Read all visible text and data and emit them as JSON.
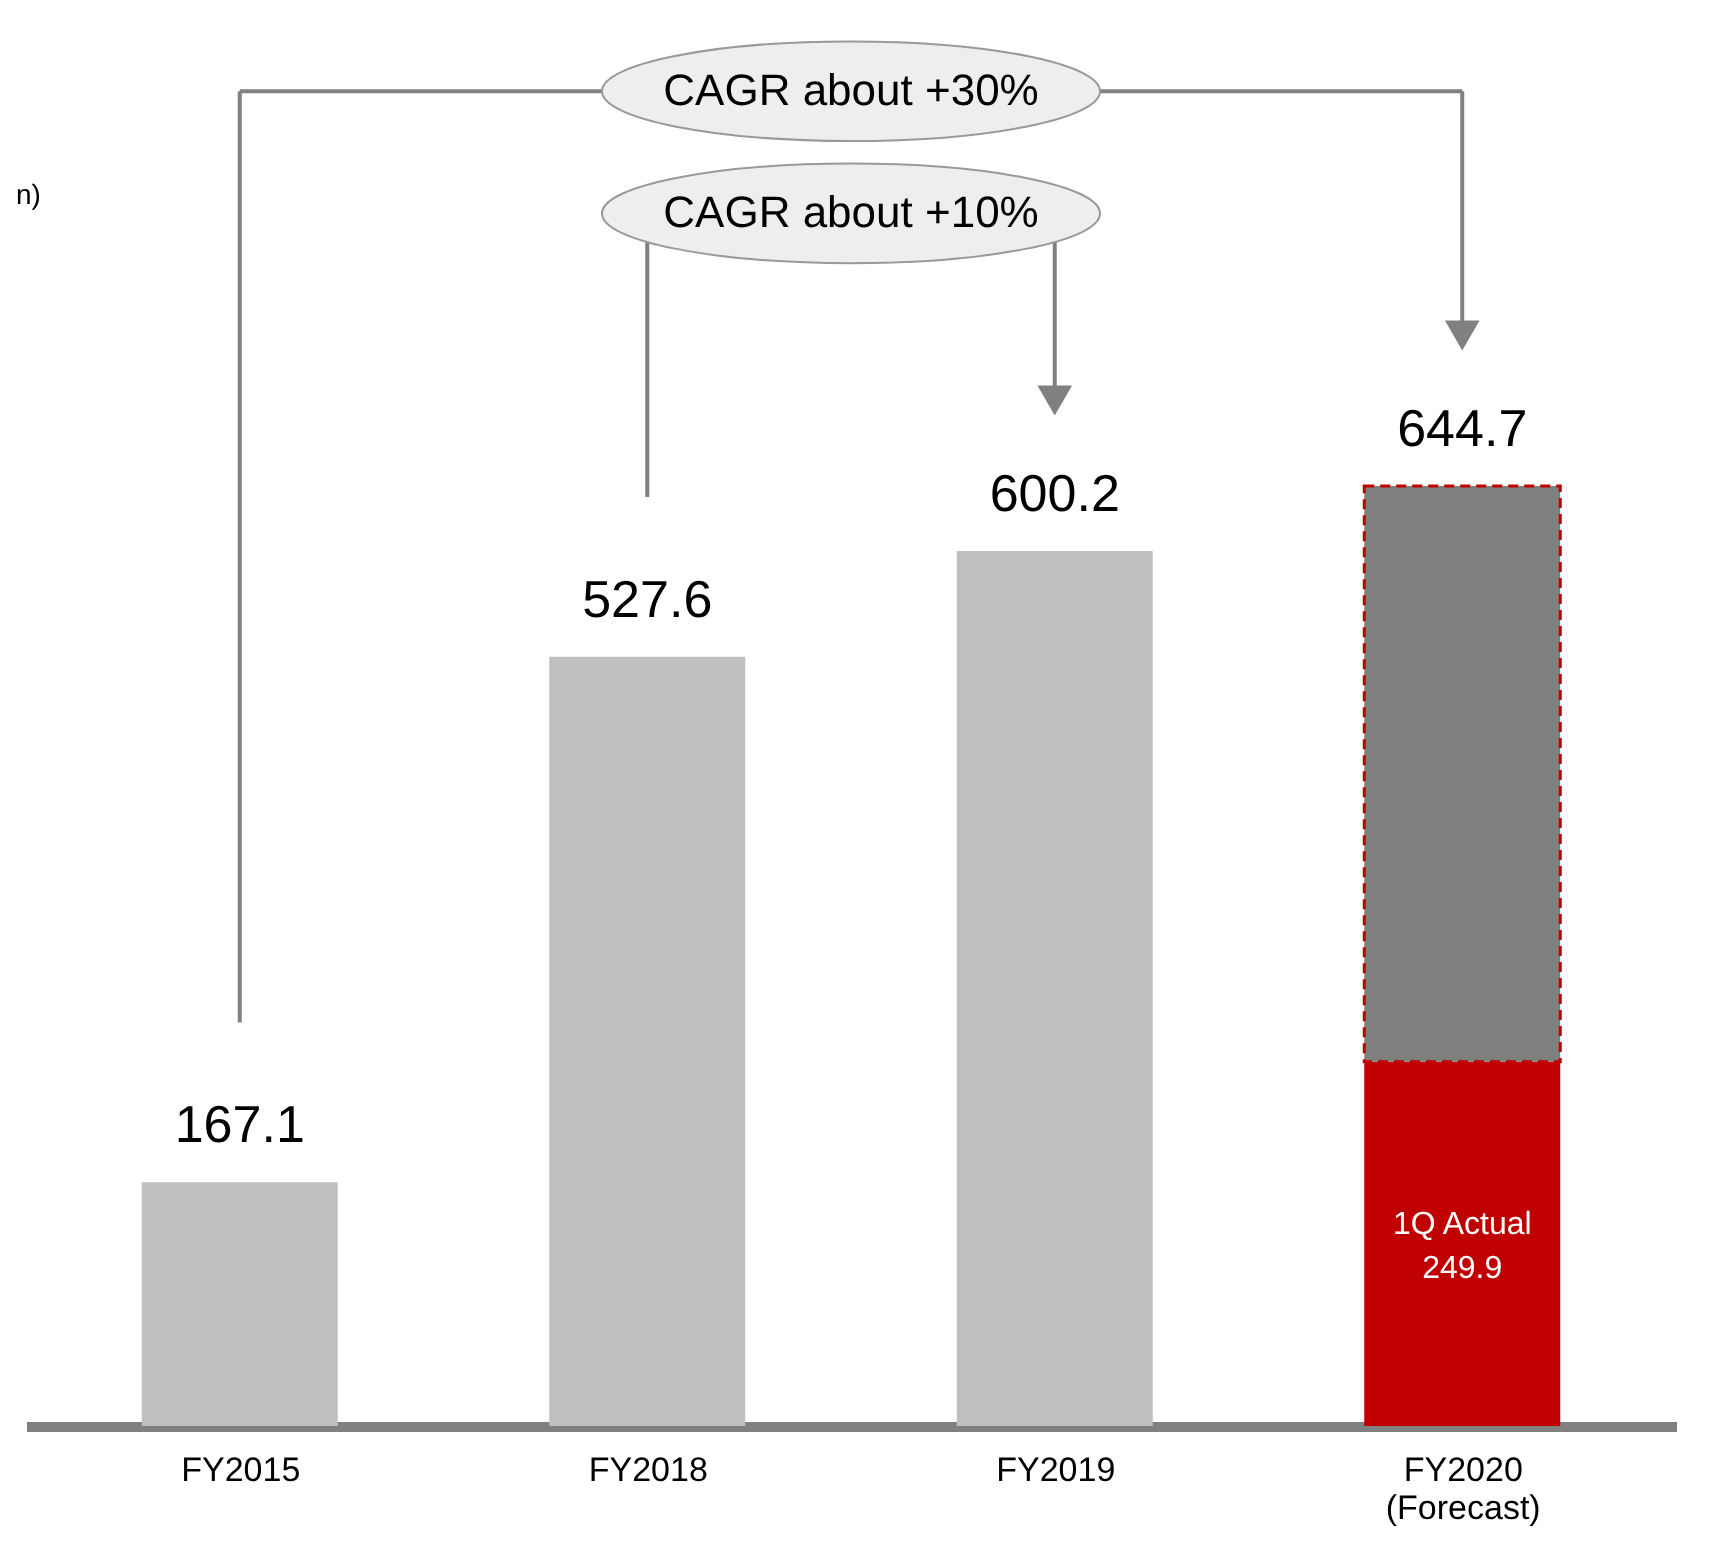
{
  "chart_data": {
    "type": "bar",
    "stacked": true,
    "categories": [
      "FY2015",
      "FY2018",
      "FY2019",
      "FY2020\n(Forecast)"
    ],
    "series": [
      {
        "name": "1Q Actual",
        "colors": [
          "#bfbfbf",
          "#bfbfbf",
          "#bfbfbf",
          "#c00000"
        ],
        "values": [
          167.1,
          527.6,
          600.2,
          249.9
        ],
        "value_labels": [
          null,
          null,
          null,
          "249.9"
        ]
      },
      {
        "color": "#7f7f7f",
        "values": [
          null,
          null,
          null,
          394.8
        ]
      }
    ],
    "totals": [
      "167.1",
      "527.6",
      "600.2",
      "644.7"
    ],
    "annotations": [
      "CAGR about +30%",
      "CAGR about +10%",
      "n)"
    ]
  }
}
